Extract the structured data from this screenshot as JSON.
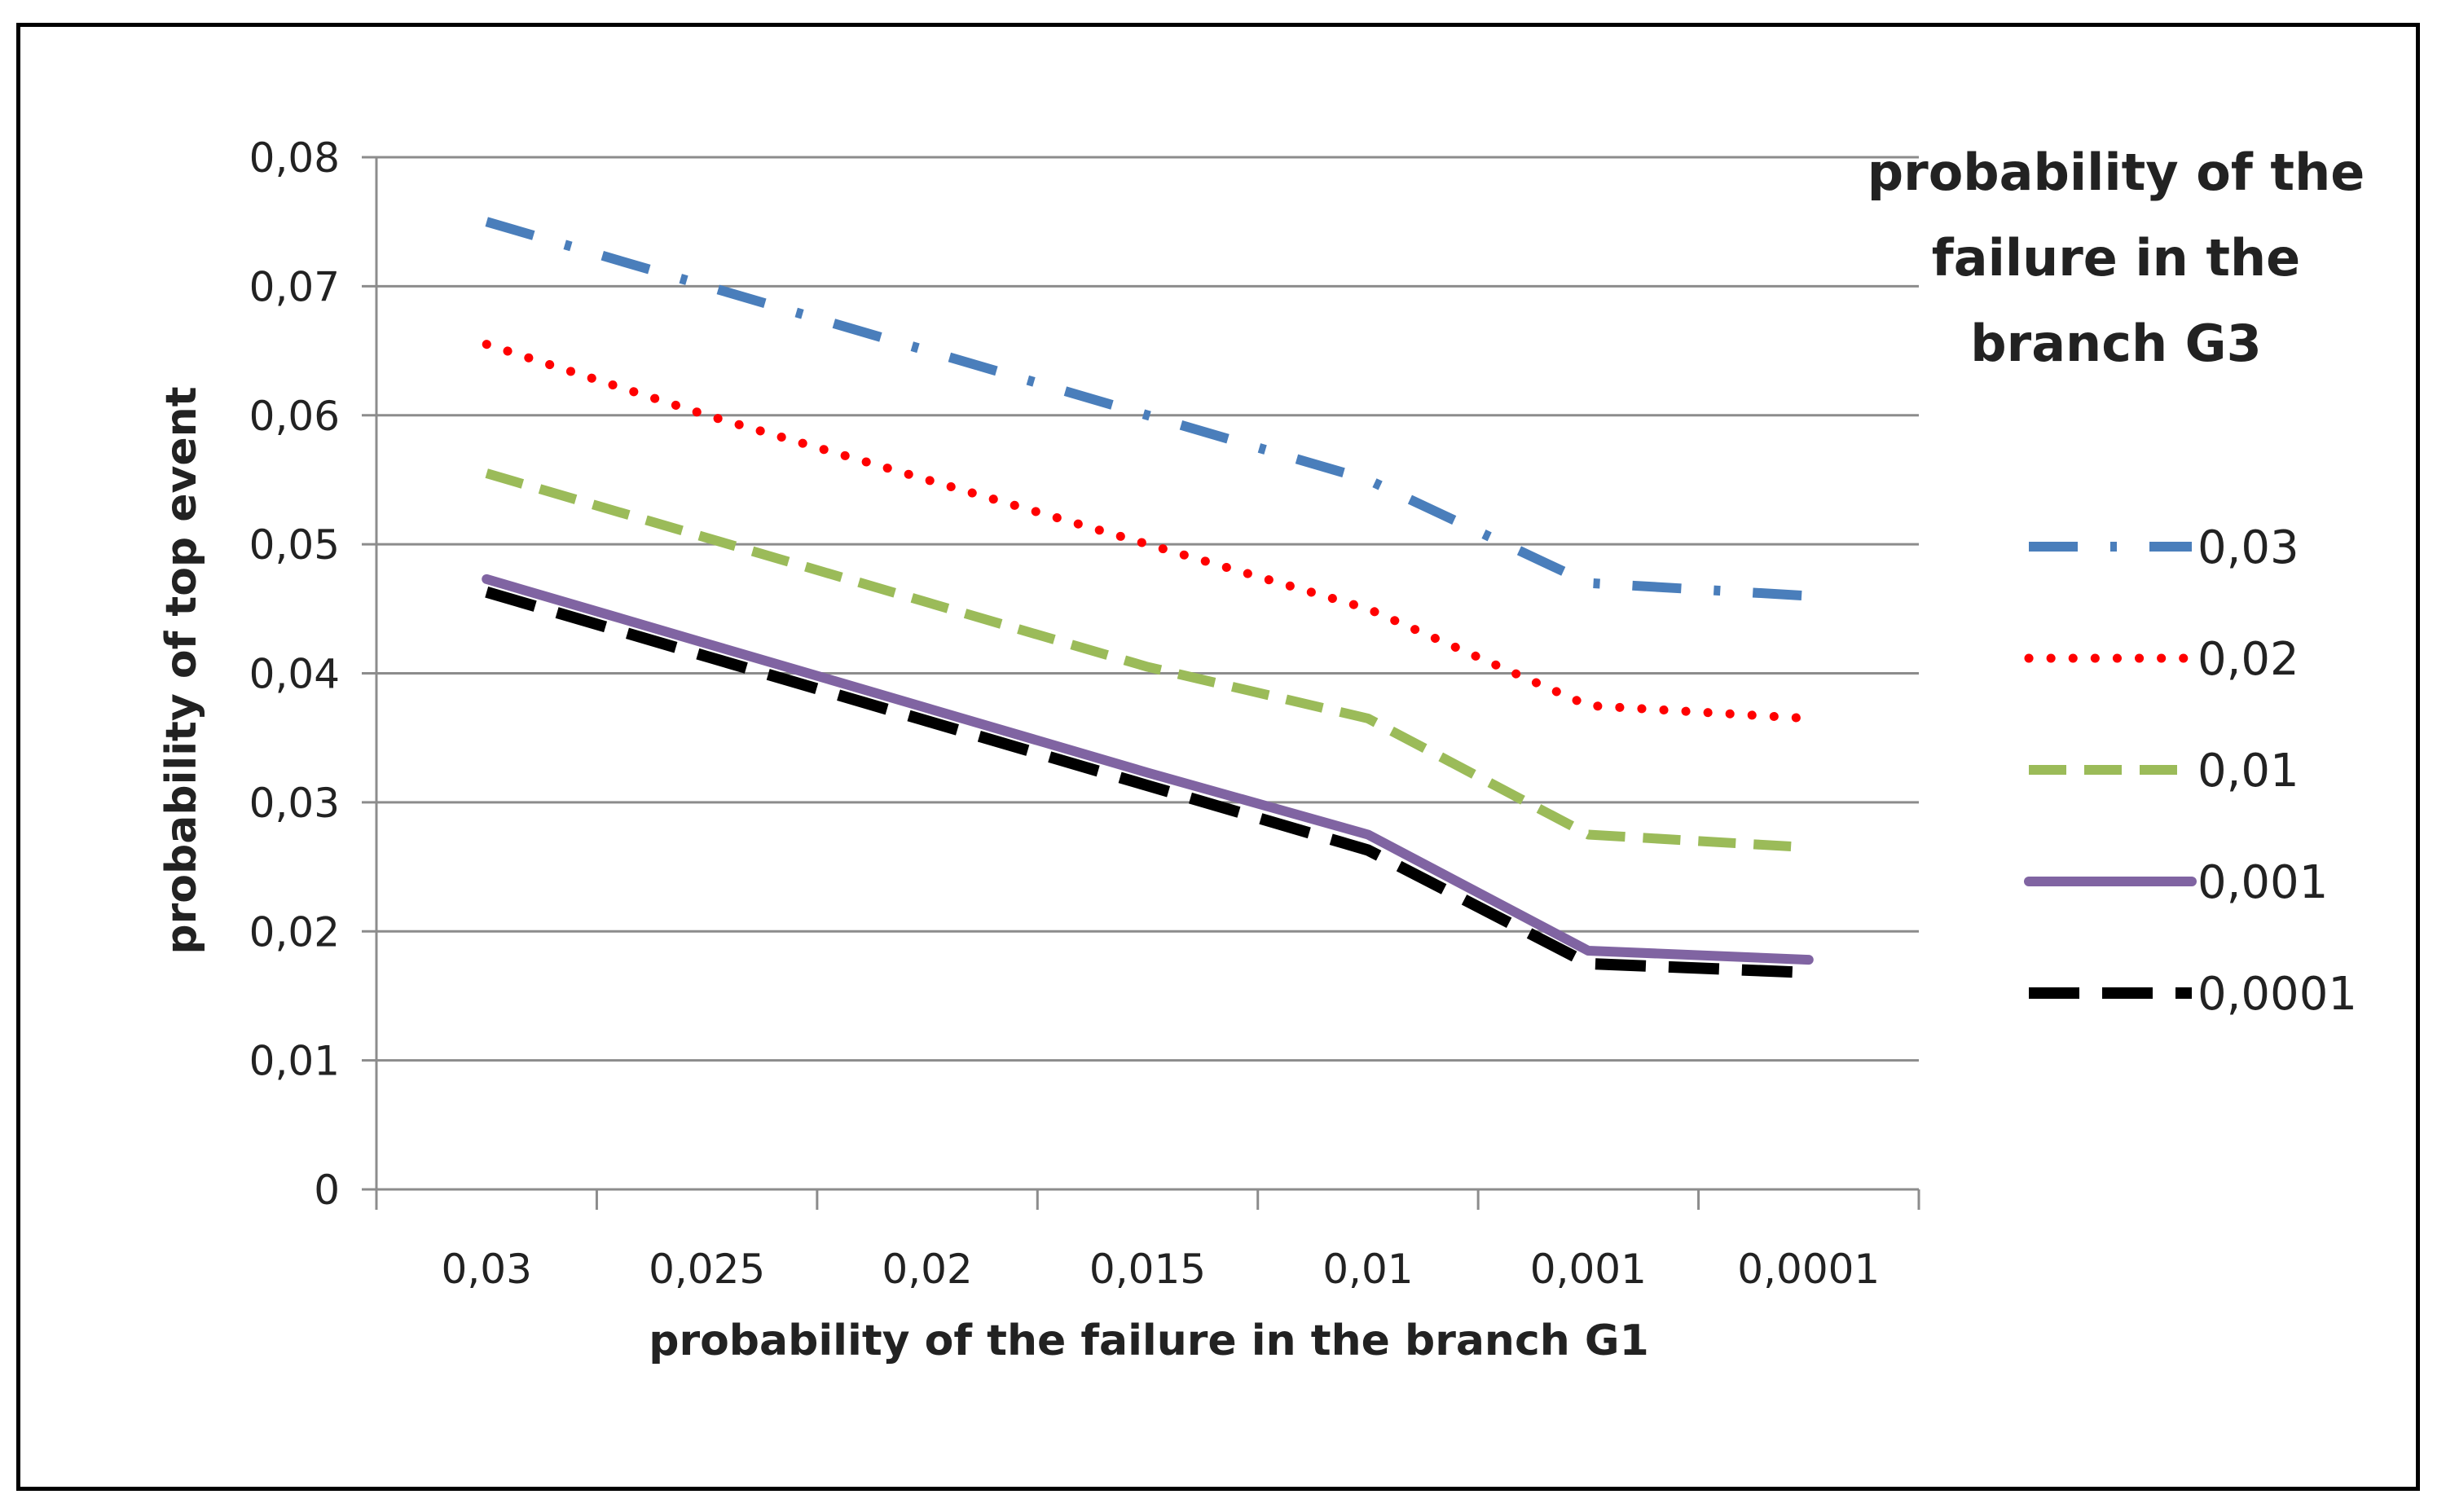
{
  "chart_data": {
    "type": "line",
    "title": "",
    "xlabel": "probability  of the failure in the branch G1",
    "ylabel": "probability of top event",
    "categories": [
      "0,03",
      "0,025",
      "0,02",
      "0,015",
      "0,01",
      "0,001",
      "0,0001"
    ],
    "yticks": [
      "0",
      "0,01",
      "0,02",
      "0,03",
      "0,04",
      "0,05",
      "0,06",
      "0,07",
      "0,08"
    ],
    "ylim": [
      0,
      0.08
    ],
    "grid": true,
    "legend_title": [
      "probability of the",
      "failure in the",
      "branch G3"
    ],
    "legend_position": "right",
    "series": [
      {
        "name": "0,03",
        "color": "#4a7ebb",
        "style": "dash-dot",
        "values": [
          0.075,
          0.07,
          0.065,
          0.06,
          0.055,
          0.047,
          0.046
        ]
      },
      {
        "name": "0,02",
        "color": "#ff0000",
        "style": "dotted",
        "values": [
          0.0655,
          0.06,
          0.055,
          0.05,
          0.045,
          0.0375,
          0.0365
        ]
      },
      {
        "name": "0,01",
        "color": "#9bbb59",
        "style": "dashed",
        "values": [
          0.0555,
          0.0505,
          0.0455,
          0.0405,
          0.0365,
          0.0275,
          0.0265
        ]
      },
      {
        "name": "0,001",
        "color": "#8064a2",
        "style": "solid",
        "values": [
          0.0473,
          0.0423,
          0.0373,
          0.0323,
          0.0275,
          0.0185,
          0.0178
        ]
      },
      {
        "name": "0,0001",
        "color": "#000000",
        "style": "long-dash",
        "values": [
          0.0463,
          0.0413,
          0.0363,
          0.0313,
          0.0263,
          0.0175,
          0.0168
        ]
      }
    ]
  }
}
